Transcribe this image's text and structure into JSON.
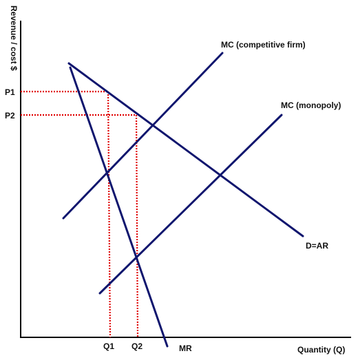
{
  "colors": {
    "curve": "#10166e",
    "guide": "#e00000",
    "axis": "#000000"
  },
  "axes": {
    "y_label": "Revenue / cost $",
    "x_label": "Quantity (Q)",
    "y_ticks": [
      "P1",
      "P2"
    ],
    "x_ticks": [
      "Q1",
      "Q2"
    ]
  },
  "curves": {
    "mc_competitive": "MC (competitive firm)",
    "mc_monopoly": "MC (monopoly)",
    "demand": "D=AR",
    "mr": "MR"
  }
}
